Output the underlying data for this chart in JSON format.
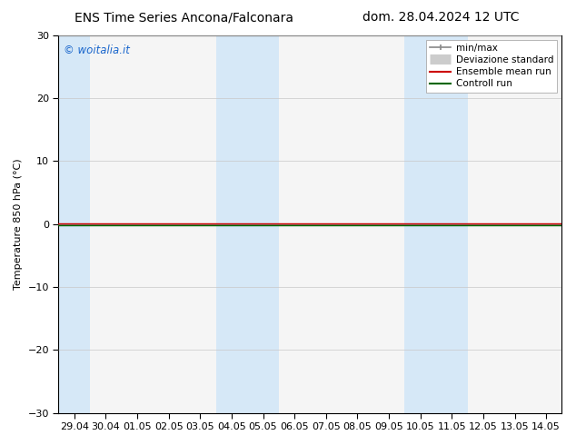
{
  "title_left": "ENS Time Series Ancona/Falconara",
  "title_right": "dom. 28.04.2024 12 UTC",
  "ylabel": "Temperature 850 hPa (°C)",
  "ylim": [
    -30,
    30
  ],
  "yticks": [
    -30,
    -20,
    -10,
    0,
    10,
    20,
    30
  ],
  "xtick_labels": [
    "29.04",
    "30.04",
    "01.05",
    "02.05",
    "03.05",
    "04.05",
    "05.05",
    "06.05",
    "07.05",
    "08.05",
    "09.05",
    "10.05",
    "11.05",
    "12.05",
    "13.05",
    "14.05"
  ],
  "watermark": "© woitalia.it",
  "watermark_color": "#1a66cc",
  "bg_color": "#ffffff",
  "plot_bg_color": "#f5f5f5",
  "shaded_band_color": "#d6e8f7",
  "shaded_columns": [
    0,
    5,
    6,
    11,
    12
  ],
  "ensemble_mean_color": "#cc0000",
  "control_run_color": "#006600",
  "title_fontsize": 10,
  "axis_fontsize": 8,
  "tick_fontsize": 8,
  "legend_fontsize": 7.5
}
